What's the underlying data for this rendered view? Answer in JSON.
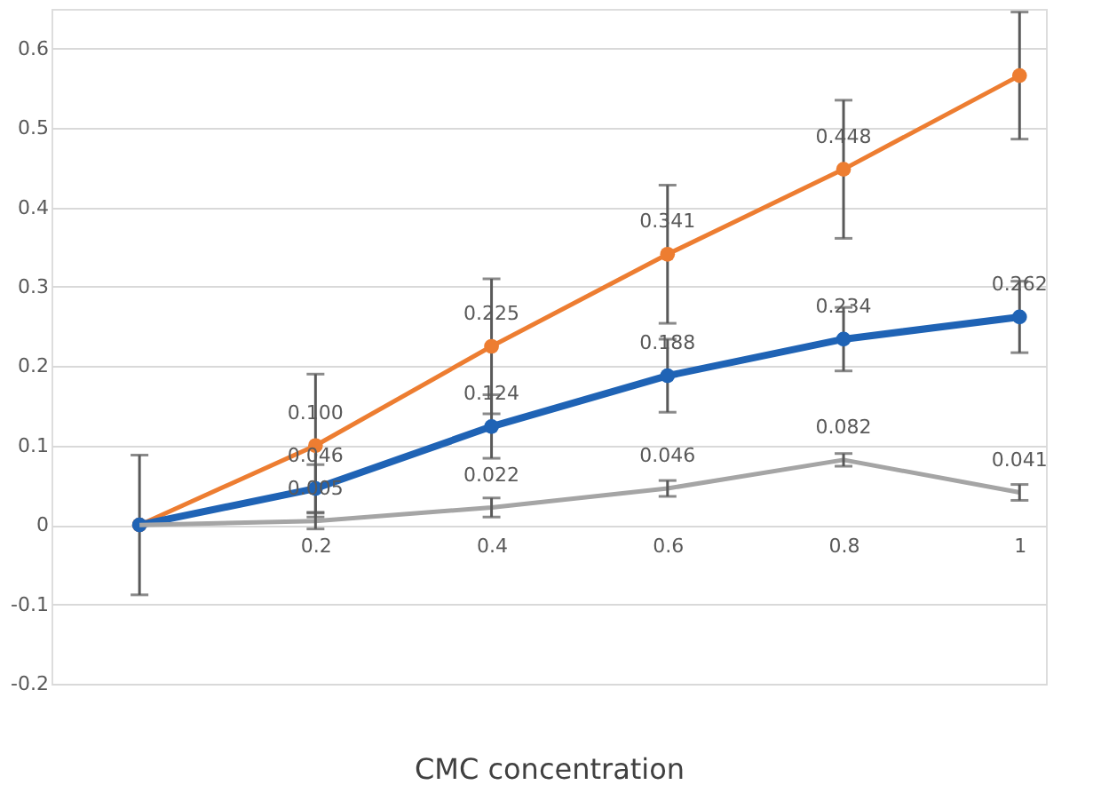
{
  "chart_data": {
    "type": "line",
    "xlabel": "CMC concentration",
    "x": [
      0,
      0.2,
      0.4,
      0.6,
      0.8,
      1
    ],
    "xlim": [
      -0.1,
      1.03
    ],
    "xticks": [
      0.2,
      0.4,
      0.6,
      0.8,
      1
    ],
    "ylim": [
      -0.2,
      0.65
    ],
    "yticks": [
      -0.2,
      -0.1,
      0,
      0.1,
      0.2,
      0.3,
      0.4,
      0.5,
      0.6
    ],
    "grid": "y",
    "line_style": "solid",
    "series": [
      {
        "color": "#ed7d31",
        "marker": "circle",
        "values": [
          0,
          0.1,
          0.225,
          0.341,
          0.448,
          0.566
        ],
        "errors": [
          null,
          0.09,
          0.085,
          0.087,
          0.087,
          0.08
        ],
        "value_labels": [
          null,
          "0.100",
          "0.225",
          "0.341",
          "0.448",
          null
        ]
      },
      {
        "color": "#1f63b5",
        "marker": "circle",
        "values": [
          0,
          0.046,
          0.124,
          0.188,
          0.234,
          0.262
        ],
        "errors": [
          0.088,
          0.03,
          0.04,
          0.046,
          0.04,
          0.045
        ],
        "value_labels": [
          null,
          "0.046",
          "0.124",
          "0.188",
          "0.234",
          "0.262"
        ]
      },
      {
        "color": "#a5a5a5",
        "marker": "none",
        "values": [
          0,
          0.005,
          0.022,
          0.046,
          0.082,
          0.041
        ],
        "errors": [
          null,
          0.01,
          0.012,
          0.01,
          0.008,
          0.01
        ],
        "value_labels": [
          null,
          "0.005",
          "0.022",
          "0.046",
          "0.082",
          "0.041"
        ]
      }
    ]
  }
}
